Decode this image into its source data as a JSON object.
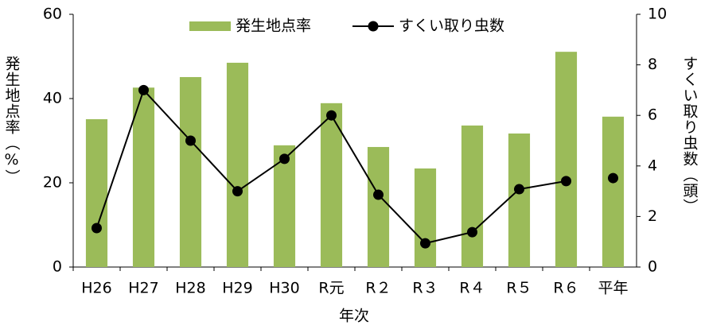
{
  "chart_data": {
    "type": "bar_line",
    "categories": [
      "H26",
      "H27",
      "H28",
      "H29",
      "H30",
      "R元",
      "R２",
      "R３",
      "R４",
      "R５",
      "R６",
      "平年"
    ],
    "series": [
      {
        "name": "発生地点率",
        "type": "bar",
        "color": "#9bbb59",
        "axis": "y",
        "values": [
          35.1,
          42.6,
          45.1,
          48.5,
          28.9,
          38.9,
          28.5,
          23.4,
          33.6,
          31.7,
          51.1,
          35.7
        ]
      },
      {
        "name": "すくい取り虫数",
        "type": "line",
        "color": "#000000",
        "axis": "y2",
        "connect_last": false,
        "values": [
          1.54,
          7.0,
          5.0,
          3.0,
          4.28,
          6.0,
          2.86,
          0.94,
          1.38,
          3.08,
          3.4,
          3.52
        ]
      }
    ],
    "xlabel": "年次",
    "ylabel": "発生地点率（%）",
    "y2label": "すくい取り虫数（頭）",
    "ylim": [
      0,
      60
    ],
    "yticks": [
      0,
      20,
      40,
      60
    ],
    "y2lim": [
      0,
      10
    ],
    "y2ticks": [
      0,
      2,
      4,
      6,
      8,
      10
    ],
    "grid": false,
    "legend": "top"
  }
}
